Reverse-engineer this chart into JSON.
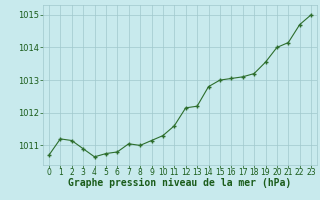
{
  "x": [
    0,
    1,
    2,
    3,
    4,
    5,
    6,
    7,
    8,
    9,
    10,
    11,
    12,
    13,
    14,
    15,
    16,
    17,
    18,
    19,
    20,
    21,
    22,
    23
  ],
  "y": [
    1010.7,
    1011.2,
    1011.15,
    1010.9,
    1010.65,
    1010.75,
    1010.8,
    1011.05,
    1011.0,
    1011.15,
    1011.3,
    1011.6,
    1012.15,
    1012.2,
    1012.8,
    1013.0,
    1013.05,
    1013.1,
    1013.2,
    1013.55,
    1014.0,
    1014.15,
    1014.7,
    1015.0
  ],
  "line_color": "#2d6e2d",
  "marker_color": "#2d6e2d",
  "bg_color": "#c8eaed",
  "grid_color": "#a0c8cc",
  "xlabel": "Graphe pression niveau de la mer (hPa)",
  "xlabel_color": "#1a5c1a",
  "tick_color": "#1a5c1a",
  "ylim": [
    1010.4,
    1015.3
  ],
  "yticks": [
    1011,
    1012,
    1013,
    1014,
    1015
  ],
  "xticks": [
    0,
    1,
    2,
    3,
    4,
    5,
    6,
    7,
    8,
    9,
    10,
    11,
    12,
    13,
    14,
    15,
    16,
    17,
    18,
    19,
    20,
    21,
    22,
    23
  ],
  "xlabel_fontsize": 7.0,
  "tick_fontsize": 5.5,
  "ytick_fontsize": 6.0
}
